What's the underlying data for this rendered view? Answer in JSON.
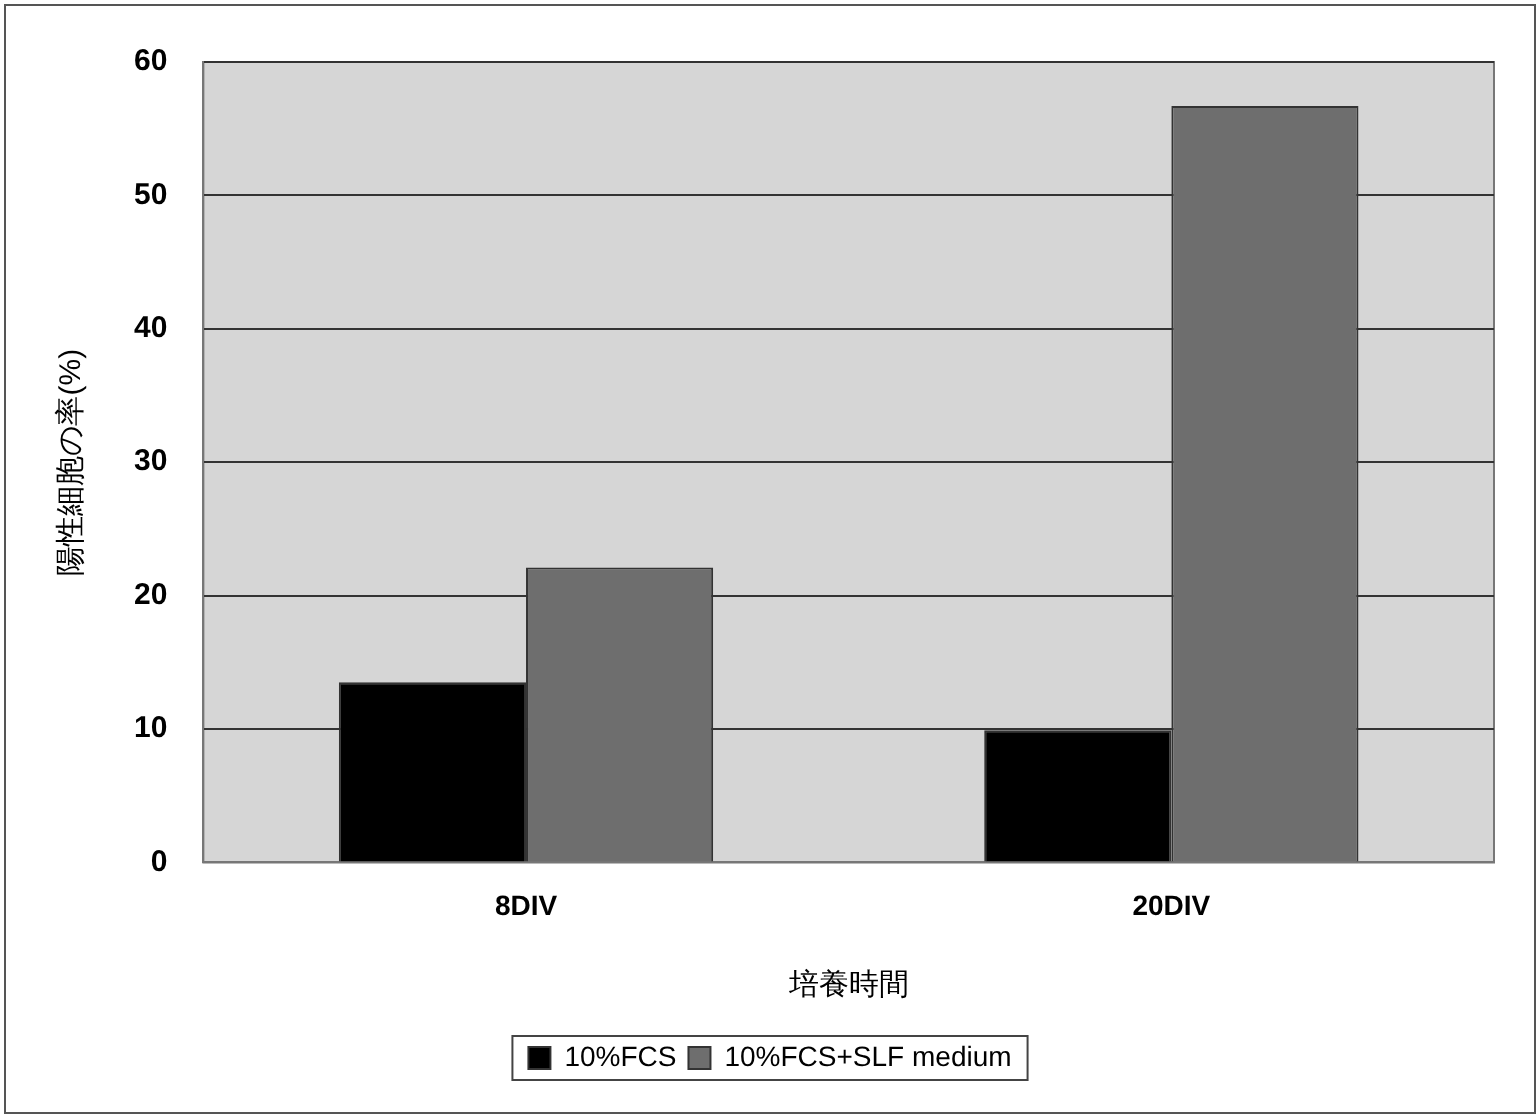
{
  "chart_data": {
    "type": "bar",
    "xlabel": "培養時間",
    "ylabel": "陽性細胞の率(%)",
    "categories": [
      "8DIV",
      "20DIV"
    ],
    "series": [
      {
        "name": "10%FCS",
        "color": "#000000",
        "values": [
          13.5,
          9.9
        ]
      },
      {
        "name": "10%FCS+SLF medium",
        "color": "#6e6e6e",
        "values": [
          22.1,
          56.7
        ]
      }
    ],
    "ylim": [
      0,
      60
    ],
    "yticks": [
      0,
      10,
      20,
      30,
      40,
      50,
      60
    ],
    "grid": "y",
    "legend": "bottom"
  }
}
